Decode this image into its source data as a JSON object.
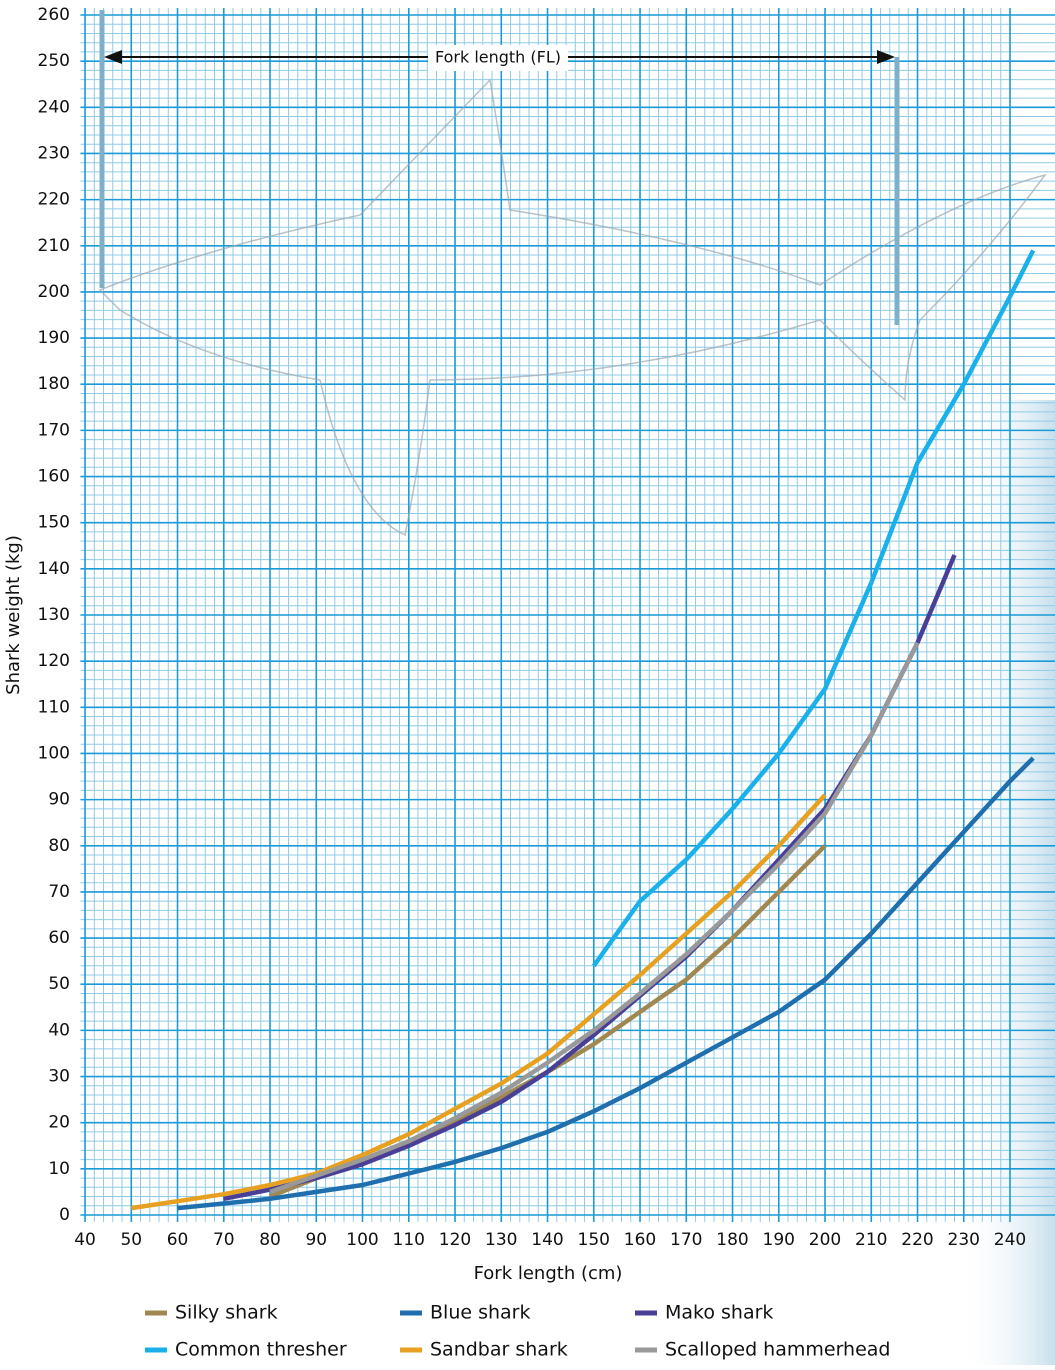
{
  "chart_data": {
    "type": "line",
    "annotation": "Fork length (FL)",
    "xlabel": "Fork length (cm)",
    "ylabel": "Shark weight (kg)",
    "xlim": [
      39,
      247
    ],
    "ylim": [
      0,
      260
    ],
    "xticks": [
      40,
      50,
      60,
      70,
      80,
      90,
      100,
      110,
      120,
      130,
      140,
      150,
      160,
      170,
      180,
      190,
      200,
      210,
      220,
      230,
      240
    ],
    "yticks": [
      0,
      10,
      20,
      30,
      40,
      50,
      60,
      70,
      80,
      90,
      100,
      110,
      120,
      130,
      140,
      150,
      160,
      170,
      180,
      190,
      200,
      210,
      220,
      230,
      240,
      250,
      260
    ],
    "grid": true,
    "series": [
      {
        "name": "Silky shark",
        "color": "#a08850",
        "x": [
          80,
          90,
          100,
          110,
          120,
          130,
          140,
          150,
          160,
          170,
          180,
          190,
          200
        ],
        "values": [
          4,
          8,
          11.5,
          16,
          20.5,
          25.5,
          31,
          37,
          44,
          51,
          60,
          70,
          80
        ]
      },
      {
        "name": "Blue shark",
        "color": "#1f6fae",
        "x": [
          60,
          70,
          80,
          90,
          100,
          110,
          120,
          130,
          140,
          150,
          160,
          170,
          180,
          190,
          200,
          210,
          220,
          230,
          240,
          245
        ],
        "values": [
          1.5,
          2.5,
          3.5,
          5,
          6.5,
          9,
          11.5,
          14.5,
          18,
          22.5,
          27.5,
          33,
          38.5,
          44,
          51,
          61,
          72,
          83,
          94,
          99
        ]
      },
      {
        "name": "Mako shark",
        "color": "#4a3f96",
        "x": [
          70,
          80,
          90,
          100,
          110,
          120,
          130,
          140,
          150,
          160,
          170,
          180,
          190,
          200,
          210,
          220,
          228
        ],
        "values": [
          3.5,
          5.5,
          8,
          11,
          15,
          19.5,
          24.5,
          31,
          39,
          47.5,
          56,
          66,
          77,
          88,
          104,
          124,
          143
        ]
      },
      {
        "name": "Common thresher",
        "color": "#1ab0ea",
        "x": [
          150,
          160,
          170,
          180,
          190,
          200,
          210,
          220,
          230,
          240,
          245
        ],
        "values": [
          54,
          68,
          77,
          88,
          100,
          114,
          137,
          163,
          180,
          199,
          209
        ]
      },
      {
        "name": "Sandbar shark",
        "color": "#e8a020",
        "x": [
          50,
          60,
          70,
          80,
          90,
          100,
          110,
          120,
          130,
          140,
          150,
          160,
          170,
          180,
          190,
          200
        ],
        "values": [
          1.5,
          3,
          4.5,
          6.5,
          9,
          13,
          17.5,
          23,
          28.5,
          35,
          43.5,
          52,
          61,
          70,
          80,
          91
        ]
      },
      {
        "name": "Scalloped hammerhead",
        "color": "#999999",
        "x": [
          80,
          90,
          100,
          110,
          120,
          130,
          140,
          150,
          160,
          170,
          180,
          190,
          200,
          210,
          220
        ],
        "values": [
          5,
          8.5,
          12,
          16,
          21,
          26.5,
          33,
          40,
          48,
          56.5,
          66,
          76,
          87,
          104,
          124
        ]
      }
    ]
  }
}
